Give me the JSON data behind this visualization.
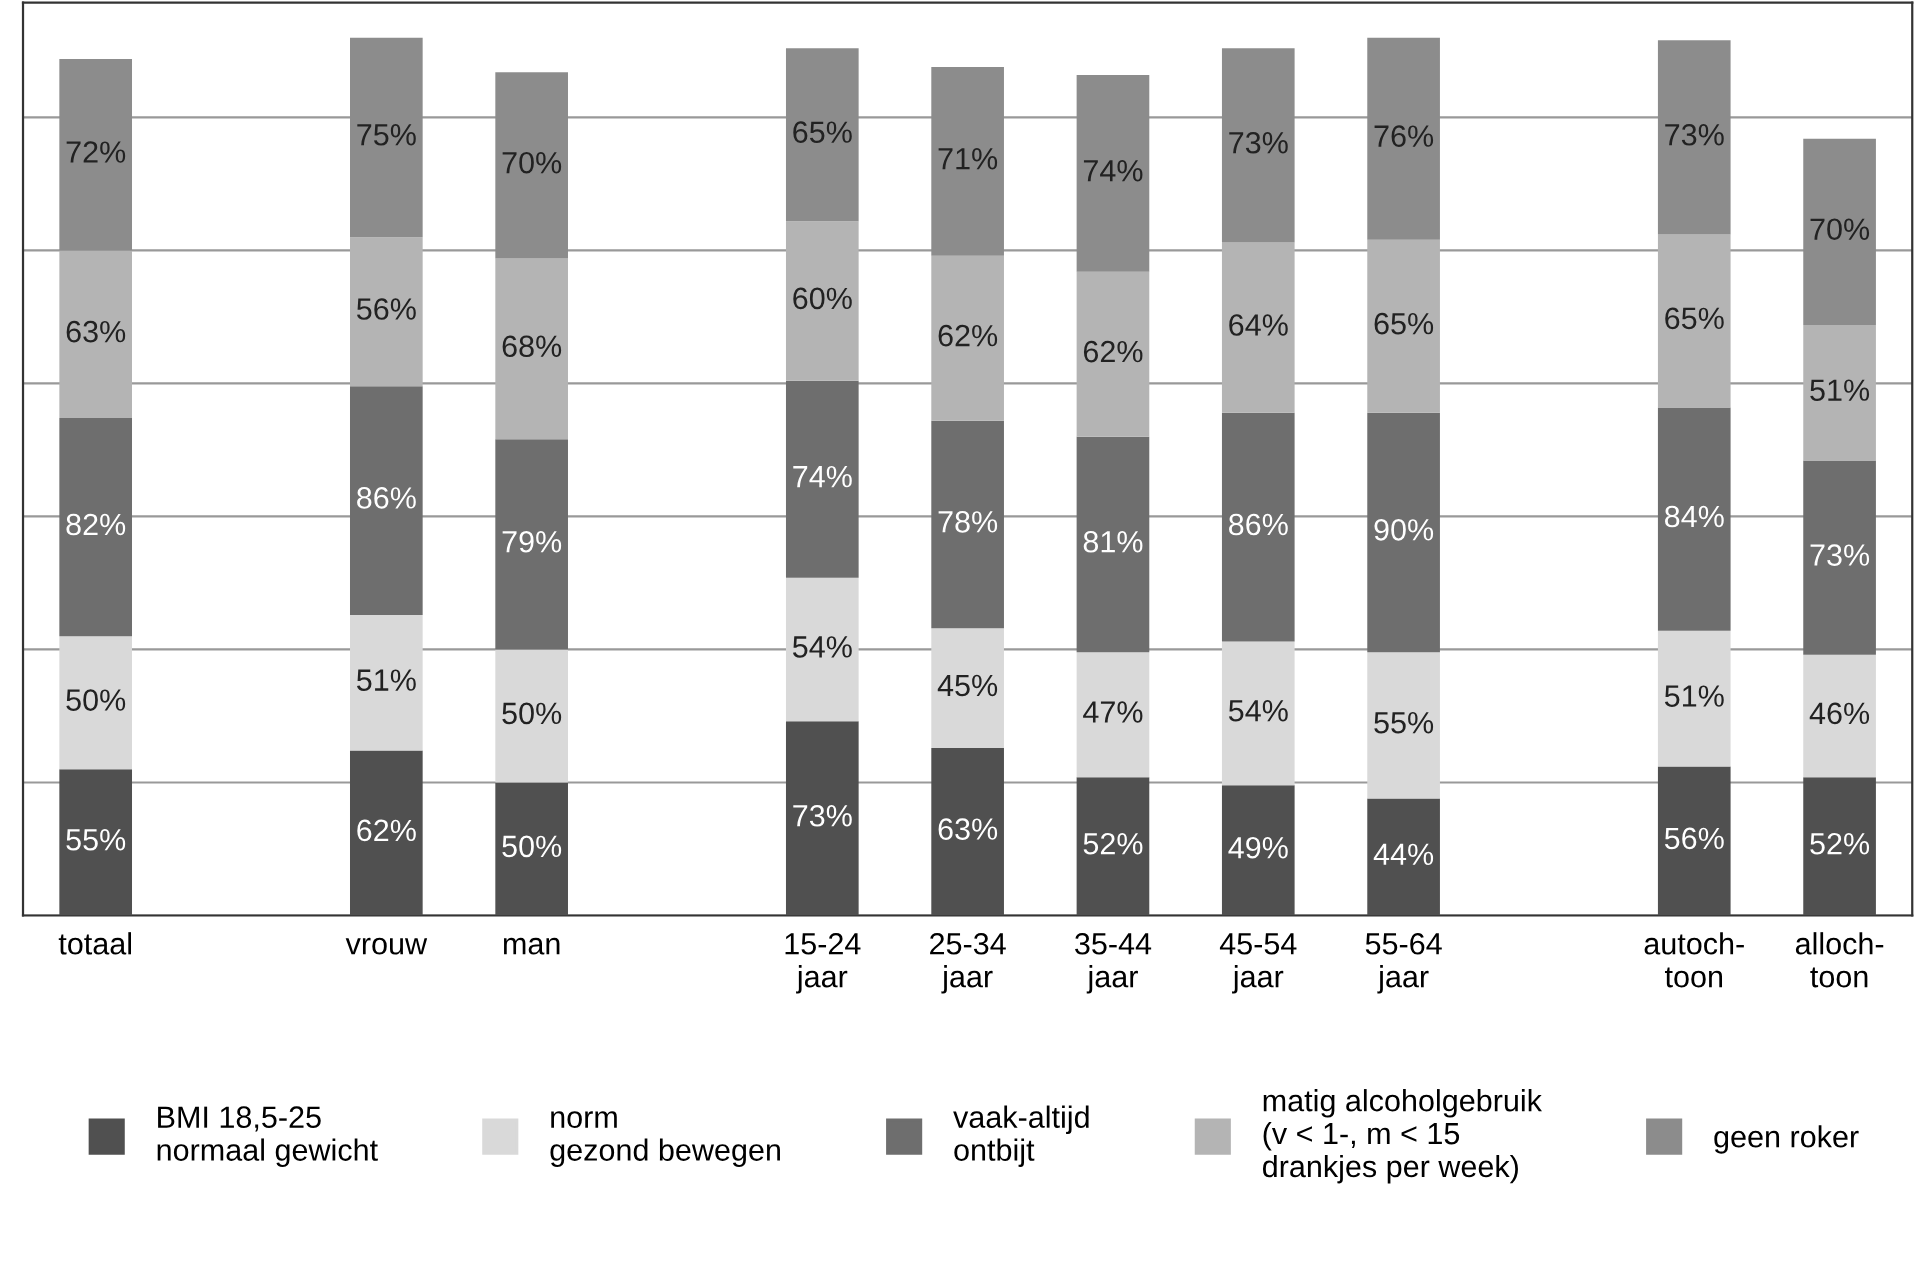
{
  "chart_data": {
    "type": "bar",
    "stacked": true,
    "tick_labels": "x",
    "grid": "y",
    "legend": "bottom",
    "categories": [
      "totaal",
      null,
      "vrouw",
      "man",
      null,
      "15-24\njaar",
      "25-34\njaar",
      "35-44\njaar",
      "45-54\njaar",
      "55-64\njaar",
      null,
      "autoch-\ntoon",
      "alloch-\ntoon"
    ],
    "series": [
      {
        "name": "BMI 18,5-25\nnormaal gewicht",
        "color": "#505050",
        "values": [
          55,
          null,
          62,
          50,
          null,
          73,
          63,
          52,
          49,
          44,
          null,
          56,
          52
        ],
        "value_labels": [
          "55%",
          null,
          "62%",
          "50%",
          null,
          "73%",
          "63%",
          "52%",
          "49%",
          "44%",
          null,
          "56%",
          "52%"
        ]
      },
      {
        "name": "norm\ngezond bewegen",
        "color": "#d9d9d9",
        "values": [
          50,
          null,
          51,
          50,
          null,
          54,
          45,
          47,
          54,
          55,
          null,
          51,
          46
        ],
        "value_labels": [
          "50%",
          null,
          "51%",
          "50%",
          null,
          "54%",
          "45%",
          "47%",
          "54%",
          "55%",
          null,
          "51%",
          "46%"
        ]
      },
      {
        "name": "vaak-altijd\nontbijt",
        "color": "#6e6e6e",
        "values": [
          82,
          null,
          86,
          79,
          null,
          74,
          78,
          81,
          86,
          90,
          null,
          84,
          73
        ],
        "value_labels": [
          "82%",
          null,
          "86%",
          "79%",
          null,
          "74%",
          "78%",
          "81%",
          "86%",
          "90%",
          null,
          "84%",
          "73%"
        ]
      },
      {
        "name": "matig alcoholgebruik\n(v < 1-, m < 15\ndrankjes per week)",
        "color": "#b4b4b4",
        "values": [
          63,
          null,
          56,
          68,
          null,
          60,
          62,
          62,
          64,
          65,
          null,
          65,
          51
        ],
        "value_labels": [
          "63%",
          null,
          "56%",
          "68%",
          null,
          "60%",
          "62%",
          "62%",
          "64%",
          "65%",
          null,
          "65%",
          "51%"
        ]
      },
      {
        "name": "geen roker",
        "color": "#8c8c8c",
        "values": [
          72,
          null,
          75,
          70,
          null,
          65,
          71,
          74,
          73,
          76,
          null,
          73,
          70
        ],
        "value_labels": [
          "72%",
          null,
          "75%",
          "70%",
          null,
          "65%",
          "71%",
          "74%",
          "73%",
          "76%",
          null,
          "73%",
          "70%"
        ]
      }
    ]
  }
}
